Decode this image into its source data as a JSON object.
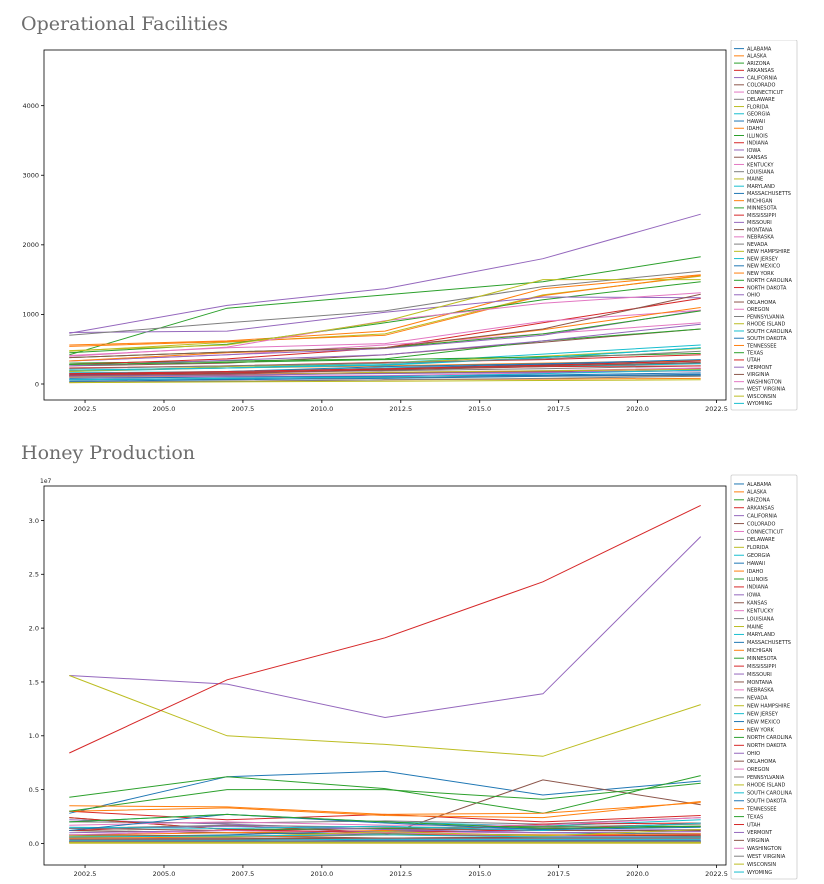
{
  "states": [
    "ALABAMA",
    "ALASKA",
    "ARIZONA",
    "ARKANSAS",
    "CALIFORNIA",
    "COLORADO",
    "CONNECTICUT",
    "DELAWARE",
    "FLORIDA",
    "GEORGIA",
    "HAWAII",
    "IDAHO",
    "ILLINOIS",
    "INDIANA",
    "IOWA",
    "KANSAS",
    "KENTUCKY",
    "LOUISIANA",
    "MAINE",
    "MARYLAND",
    "MASSACHUSETTS",
    "MICHIGAN",
    "MINNESOTA",
    "MISSISSIPPI",
    "MISSOURI",
    "MONTANA",
    "NEBRASKA",
    "NEVADA",
    "NEW HAMPSHIRE",
    "NEW JERSEY",
    "NEW MEXICO",
    "NEW YORK",
    "NORTH CAROLINA",
    "NORTH DAKOTA",
    "OHIO",
    "OKLAHOMA",
    "OREGON",
    "PENNSYLVANIA",
    "RHODE ISLAND",
    "SOUTH CAROLINA",
    "SOUTH DAKOTA",
    "TENNESSEE",
    "TEXAS",
    "UTAH",
    "VERMONT",
    "VIRGINIA",
    "WASHINGTON",
    "WEST VIRGINIA",
    "WISCONSIN",
    "WYOMING"
  ],
  "colors": [
    "#1f77b4",
    "#ff7f0e",
    "#2ca02c",
    "#d62728",
    "#9467bd",
    "#8c564b",
    "#e377c2",
    "#7f7f7f",
    "#bcbd22",
    "#17becf"
  ],
  "chart_data": [
    {
      "type": "line",
      "title": "Operational Facilities",
      "x": [
        2002,
        2007,
        2012,
        2017,
        2022
      ],
      "xticks": [
        2002.5,
        2005.0,
        2007.5,
        2010.0,
        2012.5,
        2015.0,
        2017.5,
        2020.0,
        2022.5
      ],
      "xtick_labels": [
        "2002.5",
        "2005.0",
        "2007.5",
        "2010.0",
        "2012.5",
        "2015.0",
        "2017.5",
        "2020.0",
        "2022.5"
      ],
      "yticks": [
        0,
        1000,
        2000,
        3000,
        4000
      ],
      "ytick_labels": [
        "0",
        "1000",
        "2000",
        "3000",
        "4000"
      ],
      "xlim": [
        2001.2,
        2022.8
      ],
      "ylim": [
        -230,
        4800
      ],
      "legend": "right-outside",
      "grid": false,
      "series": [
        {
          "values": [
            160,
            170,
            230,
            280,
            330
          ]
        },
        {
          "values": [
            20,
            40,
            60,
            70,
            80
          ]
        },
        {
          "values": [
            420,
            1090,
            1280,
            1470,
            1830
          ]
        },
        {
          "values": [
            230,
            260,
            310,
            350,
            420
          ]
        },
        {
          "values": [
            730,
            1130,
            1370,
            1800,
            2440
          ]
        },
        {
          "values": [
            260,
            300,
            420,
            600,
            790
          ]
        },
        {
          "values": [
            120,
            140,
            170,
            190,
            230
          ]
        },
        {
          "values": [
            60,
            80,
            90,
            110,
            120
          ]
        },
        {
          "values": [
            470,
            600,
            720,
            1280,
            1550
          ]
        },
        {
          "values": [
            180,
            230,
            300,
            430,
            560
          ]
        },
        {
          "values": [
            60,
            70,
            110,
            130,
            160
          ]
        },
        {
          "values": [
            190,
            230,
            260,
            300,
            340
          ]
        },
        {
          "values": [
            300,
            330,
            360,
            620,
            790
          ]
        },
        {
          "values": [
            280,
            360,
            520,
            880,
            1230
          ]
        },
        {
          "values": [
            260,
            340,
            420,
            620,
            860
          ]
        },
        {
          "values": [
            130,
            160,
            200,
            250,
            300
          ]
        },
        {
          "values": [
            330,
            420,
            560,
            720,
            880
          ]
        },
        {
          "values": [
            150,
            170,
            190,
            220,
            260
          ]
        },
        {
          "values": [
            180,
            250,
            300,
            400,
            510
          ]
        },
        {
          "values": [
            200,
            230,
            270,
            380,
            520
          ]
        },
        {
          "values": [
            130,
            180,
            250,
            290,
            350
          ]
        },
        {
          "values": [
            560,
            620,
            760,
            1370,
            1570
          ]
        },
        {
          "values": [
            280,
            310,
            350,
            390,
            440
          ]
        },
        {
          "values": [
            120,
            140,
            160,
            180,
            220
          ]
        },
        {
          "values": [
            330,
            420,
            510,
            700,
            1060
          ]
        },
        {
          "values": [
            100,
            120,
            160,
            170,
            190
          ]
        },
        {
          "values": [
            90,
            110,
            120,
            160,
            230
          ]
        },
        {
          "values": [
            30,
            40,
            60,
            80,
            110
          ]
        },
        {
          "values": [
            100,
            130,
            170,
            190,
            210
          ]
        },
        {
          "values": [
            160,
            180,
            230,
            250,
            290
          ]
        },
        {
          "values": [
            40,
            60,
            80,
            110,
            140
          ]
        },
        {
          "values": [
            540,
            610,
            700,
            1270,
            1560
          ]
        },
        {
          "values": [
            450,
            570,
            880,
            1210,
            1470
          ]
        },
        {
          "values": [
            140,
            160,
            210,
            250,
            260
          ]
        },
        {
          "values": [
            740,
            760,
            1030,
            1250,
            1240
          ]
        },
        {
          "values": [
            110,
            150,
            200,
            260,
            310
          ]
        },
        {
          "values": [
            410,
            520,
            580,
            900,
            1060
          ]
        },
        {
          "values": [
            700,
            880,
            1050,
            1400,
            1620
          ]
        },
        {
          "values": [
            20,
            30,
            40,
            50,
            60
          ]
        },
        {
          "values": [
            200,
            230,
            280,
            380,
            520
          ]
        },
        {
          "values": [
            80,
            100,
            110,
            120,
            130
          ]
        },
        {
          "values": [
            330,
            450,
            520,
            780,
            1100
          ]
        },
        {
          "values": [
            380,
            460,
            520,
            720,
            1050
          ]
        },
        {
          "values": [
            150,
            180,
            220,
            270,
            330
          ]
        },
        {
          "values": [
            110,
            130,
            150,
            170,
            190
          ]
        },
        {
          "values": [
            380,
            460,
            520,
            790,
            1290
          ]
        },
        {
          "values": [
            400,
            530,
            910,
            1160,
            1310
          ]
        },
        {
          "values": [
            220,
            260,
            300,
            360,
            470
          ]
        },
        {
          "values": [
            480,
            560,
            900,
            1500,
            1500
          ]
        },
        {
          "values": [
            60,
            80,
            100,
            150,
            200
          ]
        }
      ]
    },
    {
      "type": "line",
      "title": "Honey Production",
      "y_exponent_label": "1e7",
      "x": [
        2002,
        2007,
        2012,
        2017,
        2022
      ],
      "xticks": [
        2002.5,
        2005.0,
        2007.5,
        2010.0,
        2012.5,
        2015.0,
        2017.5,
        2020.0,
        2022.5
      ],
      "xtick_labels": [
        "2002.5",
        "2005.0",
        "2007.5",
        "2010.0",
        "2012.5",
        "2015.0",
        "2017.5",
        "2020.0",
        "2022.5"
      ],
      "yticks": [
        0,
        0.5,
        1.0,
        1.5,
        2.0,
        2.5,
        3.0
      ],
      "ytick_labels": [
        "0.0",
        "0.5",
        "1.0",
        "1.5",
        "2.0",
        "2.5",
        "3.0"
      ],
      "xlim": [
        2001.2,
        2022.8
      ],
      "ylim": [
        -0.2,
        3.32
      ],
      "legend": "right-outside",
      "grid": false,
      "series": [
        {
          "values": [
            0.28,
            0.62,
            0.67,
            0.45,
            0.58
          ]
        },
        {
          "values": [
            0.003,
            0.003,
            0.003,
            0.003,
            0.003
          ]
        },
        {
          "values": [
            0.12,
            0.1,
            0.09,
            0.08,
            0.07
          ]
        },
        {
          "values": [
            0.3,
            0.22,
            0.27,
            0.2,
            0.26
          ]
        },
        {
          "values": [
            1.56,
            1.48,
            1.17,
            1.39,
            2.85
          ]
        },
        {
          "values": [
            0.12,
            0.1,
            0.08,
            0.59,
            0.36
          ]
        },
        {
          "values": [
            0.02,
            0.02,
            0.02,
            0.02,
            0.02
          ]
        },
        {
          "values": [
            0.01,
            0.01,
            0.01,
            0.01,
            0.01
          ]
        },
        {
          "values": [
            1.56,
            1.0,
            0.92,
            0.81,
            1.29
          ]
        },
        {
          "values": [
            0.2,
            0.27,
            0.2,
            0.16,
            0.22
          ]
        },
        {
          "values": [
            0.06,
            0.08,
            0.12,
            0.1,
            0.09
          ]
        },
        {
          "values": [
            0.08,
            0.1,
            0.12,
            0.14,
            0.16
          ]
        },
        {
          "values": [
            0.43,
            0.62,
            0.51,
            0.28,
            0.63
          ]
        },
        {
          "values": [
            0.84,
            1.52,
            1.91,
            2.43,
            3.14
          ]
        },
        {
          "values": [
            0.22,
            0.18,
            0.13,
            0.14,
            0.16
          ]
        },
        {
          "values": [
            0.08,
            0.07,
            0.05,
            0.06,
            0.07
          ]
        },
        {
          "values": [
            0.04,
            0.04,
            0.04,
            0.05,
            0.05
          ]
        },
        {
          "values": [
            0.2,
            0.19,
            0.21,
            0.18,
            0.24
          ]
        },
        {
          "values": [
            0.02,
            0.02,
            0.02,
            0.02,
            0.02
          ]
        },
        {
          "values": [
            0.02,
            0.02,
            0.02,
            0.02,
            0.02
          ]
        },
        {
          "values": [
            0.02,
            0.02,
            0.02,
            0.02,
            0.02
          ]
        },
        {
          "values": [
            0.3,
            0.33,
            0.26,
            0.24,
            0.39
          ]
        },
        {
          "values": [
            0.3,
            0.5,
            0.5,
            0.41,
            0.56
          ]
        },
        {
          "values": [
            0.12,
            0.17,
            0.1,
            0.18,
            0.19
          ]
        },
        {
          "values": [
            0.1,
            0.12,
            0.11,
            0.12,
            0.13
          ]
        },
        {
          "values": [
            0.14,
            0.12,
            0.14,
            0.12,
            0.12
          ]
        },
        {
          "values": [
            0.08,
            0.12,
            0.1,
            0.1,
            0.11
          ]
        },
        {
          "values": [
            0.01,
            0.01,
            0.01,
            0.01,
            0.01
          ]
        },
        {
          "values": [
            0.01,
            0.01,
            0.01,
            0.01,
            0.01
          ]
        },
        {
          "values": [
            0.03,
            0.03,
            0.04,
            0.04,
            0.04
          ]
        },
        {
          "values": [
            0.02,
            0.02,
            0.03,
            0.03,
            0.03
          ]
        },
        {
          "values": [
            0.35,
            0.34,
            0.27,
            0.28,
            0.38
          ]
        },
        {
          "values": [
            0.24,
            0.13,
            0.14,
            0.16,
            0.16
          ]
        },
        {
          "values": [
            0.24,
            0.13,
            0.1,
            0.13,
            0.19
          ]
        },
        {
          "values": [
            0.14,
            0.16,
            0.13,
            0.1,
            0.11
          ]
        },
        {
          "values": [
            0.05,
            0.05,
            0.05,
            0.06,
            0.06
          ]
        },
        {
          "values": [
            0.17,
            0.2,
            0.17,
            0.17,
            0.24
          ]
        },
        {
          "values": [
            0.14,
            0.17,
            0.15,
            0.15,
            0.18
          ]
        },
        {
          "values": [
            0.003,
            0.003,
            0.003,
            0.003,
            0.003
          ]
        },
        {
          "values": [
            0.15,
            0.14,
            0.16,
            0.12,
            0.19
          ]
        },
        {
          "values": [
            0.12,
            0.27,
            0.19,
            0.13,
            0.15
          ]
        },
        {
          "values": [
            0.05,
            0.06,
            0.08,
            0.08,
            0.09
          ]
        },
        {
          "values": [
            0.2,
            0.27,
            0.2,
            0.14,
            0.16
          ]
        },
        {
          "values": [
            0.06,
            0.07,
            0.08,
            0.07,
            0.08
          ]
        },
        {
          "values": [
            0.02,
            0.02,
            0.02,
            0.02,
            0.02
          ]
        },
        {
          "values": [
            0.04,
            0.04,
            0.05,
            0.05,
            0.05
          ]
        },
        {
          "values": [
            0.07,
            0.06,
            0.1,
            0.07,
            0.06
          ]
        },
        {
          "values": [
            0.02,
            0.02,
            0.02,
            0.02,
            0.02
          ]
        },
        {
          "values": [
            0.07,
            0.06,
            0.11,
            0.07,
            0.13
          ]
        },
        {
          "values": [
            0.06,
            0.07,
            0.08,
            0.06,
            0.06
          ]
        }
      ]
    }
  ]
}
